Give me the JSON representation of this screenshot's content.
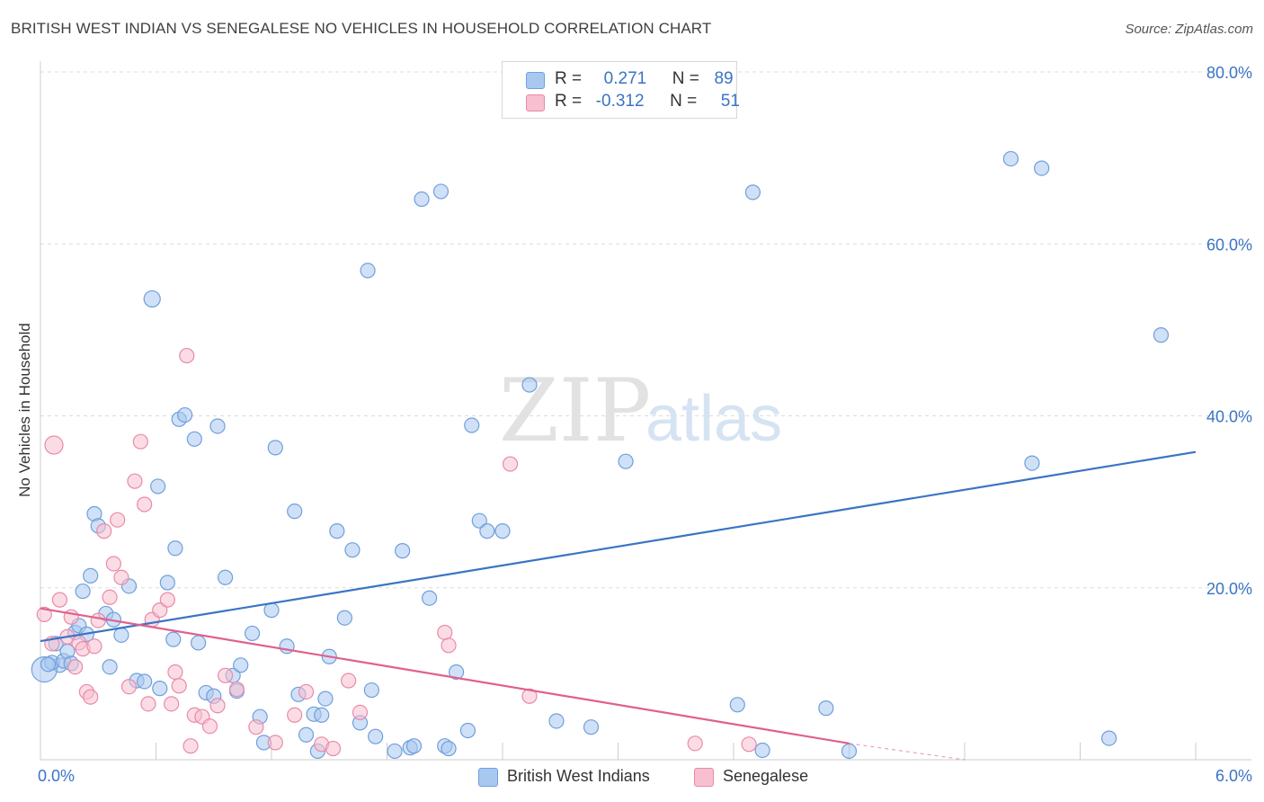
{
  "header": {
    "title": "BRITISH WEST INDIAN VS SENEGALESE NO VEHICLES IN HOUSEHOLD CORRELATION CHART",
    "source": "Source: ZipAtlas.com"
  },
  "watermark": {
    "part1": "ZIP",
    "part2": "atlas"
  },
  "legend": {
    "rows": [
      {
        "r_label": "R =",
        "r_value": "0.271",
        "n_label": "N =",
        "n_value": "89",
        "color": "#a9c8f0",
        "border": "#6f9fdc"
      },
      {
        "r_label": "R =",
        "r_value": "-0.312",
        "n_label": "N =",
        "n_value": "51",
        "color": "#f8bfd0",
        "border": "#e98aa8"
      }
    ]
  },
  "bottom_legend": [
    {
      "label": "British West Indians",
      "color": "#a9c8f0",
      "border": "#6f9fdc"
    },
    {
      "label": "Senegalese",
      "color": "#f8bfd0",
      "border": "#e98aa8"
    }
  ],
  "chart_data": {
    "type": "scatter",
    "title": "BRITISH WEST INDIAN VS SENEGALESE NO VEHICLES IN HOUSEHOLD CORRELATION CHART",
    "xlabel": "",
    "ylabel": "No Vehicles in Household",
    "xlim": [
      0,
      6.0
    ],
    "ylim": [
      0,
      80
    ],
    "x_tick_labels": [
      "0.0%",
      "6.0%"
    ],
    "y_ticks": [
      20,
      40,
      60,
      80
    ],
    "y_tick_labels": [
      "20.0%",
      "40.0%",
      "60.0%",
      "80.0%"
    ],
    "grid": true,
    "legend_placement": "top-center",
    "series": [
      {
        "name": "British West Indians",
        "color": "#6f9fdc",
        "fill": "#a9c8f0",
        "trend": {
          "x": [
            0.0,
            6.0
          ],
          "y": [
            13.8,
            35.8
          ],
          "color": "#3a74c4"
        },
        "points": [
          [
            0.58,
            53.6
          ],
          [
            0.1,
            11.0
          ],
          [
            0.02,
            10.5
          ],
          [
            0.06,
            11.3
          ],
          [
            0.12,
            11.5
          ],
          [
            0.08,
            13.5
          ],
          [
            0.14,
            12.6
          ],
          [
            0.18,
            14.8
          ],
          [
            0.2,
            15.6
          ],
          [
            0.24,
            14.6
          ],
          [
            0.22,
            19.6
          ],
          [
            0.28,
            28.6
          ],
          [
            0.34,
            17.0
          ],
          [
            0.38,
            16.3
          ],
          [
            0.42,
            14.5
          ],
          [
            0.26,
            21.4
          ],
          [
            0.3,
            27.2
          ],
          [
            0.46,
            20.2
          ],
          [
            0.5,
            9.2
          ],
          [
            0.54,
            9.1
          ],
          [
            0.62,
            8.3
          ],
          [
            0.61,
            31.8
          ],
          [
            0.66,
            20.6
          ],
          [
            0.69,
            14.0
          ],
          [
            0.72,
            39.6
          ],
          [
            0.75,
            40.1
          ],
          [
            0.7,
            24.6
          ],
          [
            0.8,
            37.3
          ],
          [
            0.82,
            13.6
          ],
          [
            0.86,
            7.8
          ],
          [
            0.9,
            7.4
          ],
          [
            0.92,
            38.8
          ],
          [
            0.96,
            21.2
          ],
          [
            1.0,
            9.8
          ],
          [
            1.04,
            11.0
          ],
          [
            1.02,
            8.0
          ],
          [
            1.1,
            14.7
          ],
          [
            1.14,
            5.0
          ],
          [
            1.16,
            2.0
          ],
          [
            1.2,
            17.4
          ],
          [
            1.22,
            36.3
          ],
          [
            1.28,
            13.2
          ],
          [
            1.32,
            28.9
          ],
          [
            1.34,
            7.6
          ],
          [
            1.38,
            2.9
          ],
          [
            1.42,
            5.3
          ],
          [
            1.46,
            5.2
          ],
          [
            1.48,
            7.1
          ],
          [
            1.5,
            12.0
          ],
          [
            1.44,
            1.0
          ],
          [
            1.54,
            26.6
          ],
          [
            1.58,
            16.5
          ],
          [
            1.62,
            24.4
          ],
          [
            1.66,
            4.3
          ],
          [
            1.7,
            56.9
          ],
          [
            1.72,
            8.1
          ],
          [
            1.74,
            2.7
          ],
          [
            1.84,
            1.0
          ],
          [
            1.88,
            24.3
          ],
          [
            1.92,
            1.4
          ],
          [
            1.94,
            1.6
          ],
          [
            1.98,
            65.2
          ],
          [
            2.02,
            18.8
          ],
          [
            2.08,
            66.1
          ],
          [
            2.1,
            1.6
          ],
          [
            2.12,
            1.3
          ],
          [
            2.16,
            10.2
          ],
          [
            2.22,
            3.4
          ],
          [
            2.28,
            27.8
          ],
          [
            2.32,
            26.6
          ],
          [
            2.24,
            38.9
          ],
          [
            2.4,
            26.6
          ],
          [
            2.54,
            43.6
          ],
          [
            2.68,
            4.5
          ],
          [
            2.86,
            3.8
          ],
          [
            3.04,
            34.7
          ],
          [
            3.62,
            6.4
          ],
          [
            3.7,
            66.0
          ],
          [
            3.75,
            1.1
          ],
          [
            4.08,
            6.0
          ],
          [
            4.2,
            1.0
          ],
          [
            5.04,
            69.9
          ],
          [
            5.15,
            34.5
          ],
          [
            5.2,
            68.8
          ],
          [
            5.55,
            2.5
          ],
          [
            5.82,
            49.4
          ],
          [
            0.16,
            11.2
          ],
          [
            0.04,
            11.1
          ],
          [
            0.36,
            10.8
          ]
        ]
      },
      {
        "name": "Senegalese",
        "color": "#e98aa8",
        "fill": "#f8bfd0",
        "trend": {
          "x": [
            0.0,
            4.2
          ],
          "y": [
            17.6,
            1.9
          ],
          "dashed_to": [
            4.8,
            0.0
          ],
          "color": "#e0608c"
        },
        "points": [
          [
            0.07,
            36.6
          ],
          [
            0.02,
            16.9
          ],
          [
            0.06,
            13.5
          ],
          [
            0.1,
            18.6
          ],
          [
            0.14,
            14.3
          ],
          [
            0.16,
            16.6
          ],
          [
            0.18,
            10.8
          ],
          [
            0.2,
            13.6
          ],
          [
            0.22,
            12.9
          ],
          [
            0.24,
            7.9
          ],
          [
            0.26,
            7.3
          ],
          [
            0.28,
            13.2
          ],
          [
            0.3,
            16.2
          ],
          [
            0.33,
            26.6
          ],
          [
            0.36,
            18.9
          ],
          [
            0.38,
            22.8
          ],
          [
            0.4,
            27.9
          ],
          [
            0.42,
            21.2
          ],
          [
            0.46,
            8.5
          ],
          [
            0.49,
            32.4
          ],
          [
            0.52,
            37.0
          ],
          [
            0.54,
            29.7
          ],
          [
            0.56,
            6.5
          ],
          [
            0.58,
            16.3
          ],
          [
            0.62,
            17.4
          ],
          [
            0.66,
            18.6
          ],
          [
            0.68,
            6.5
          ],
          [
            0.7,
            10.2
          ],
          [
            0.72,
            8.6
          ],
          [
            0.76,
            47.0
          ],
          [
            0.78,
            1.6
          ],
          [
            0.8,
            5.2
          ],
          [
            0.84,
            5.0
          ],
          [
            0.88,
            3.9
          ],
          [
            0.92,
            6.3
          ],
          [
            0.96,
            9.8
          ],
          [
            1.02,
            8.2
          ],
          [
            1.12,
            3.8
          ],
          [
            1.22,
            2.0
          ],
          [
            1.32,
            5.2
          ],
          [
            1.38,
            7.9
          ],
          [
            1.46,
            1.8
          ],
          [
            1.52,
            1.3
          ],
          [
            1.6,
            9.2
          ],
          [
            1.66,
            5.5
          ],
          [
            2.1,
            14.8
          ],
          [
            2.12,
            13.3
          ],
          [
            2.44,
            34.4
          ],
          [
            2.54,
            7.4
          ],
          [
            3.4,
            1.9
          ],
          [
            3.68,
            1.8
          ]
        ]
      }
    ]
  }
}
